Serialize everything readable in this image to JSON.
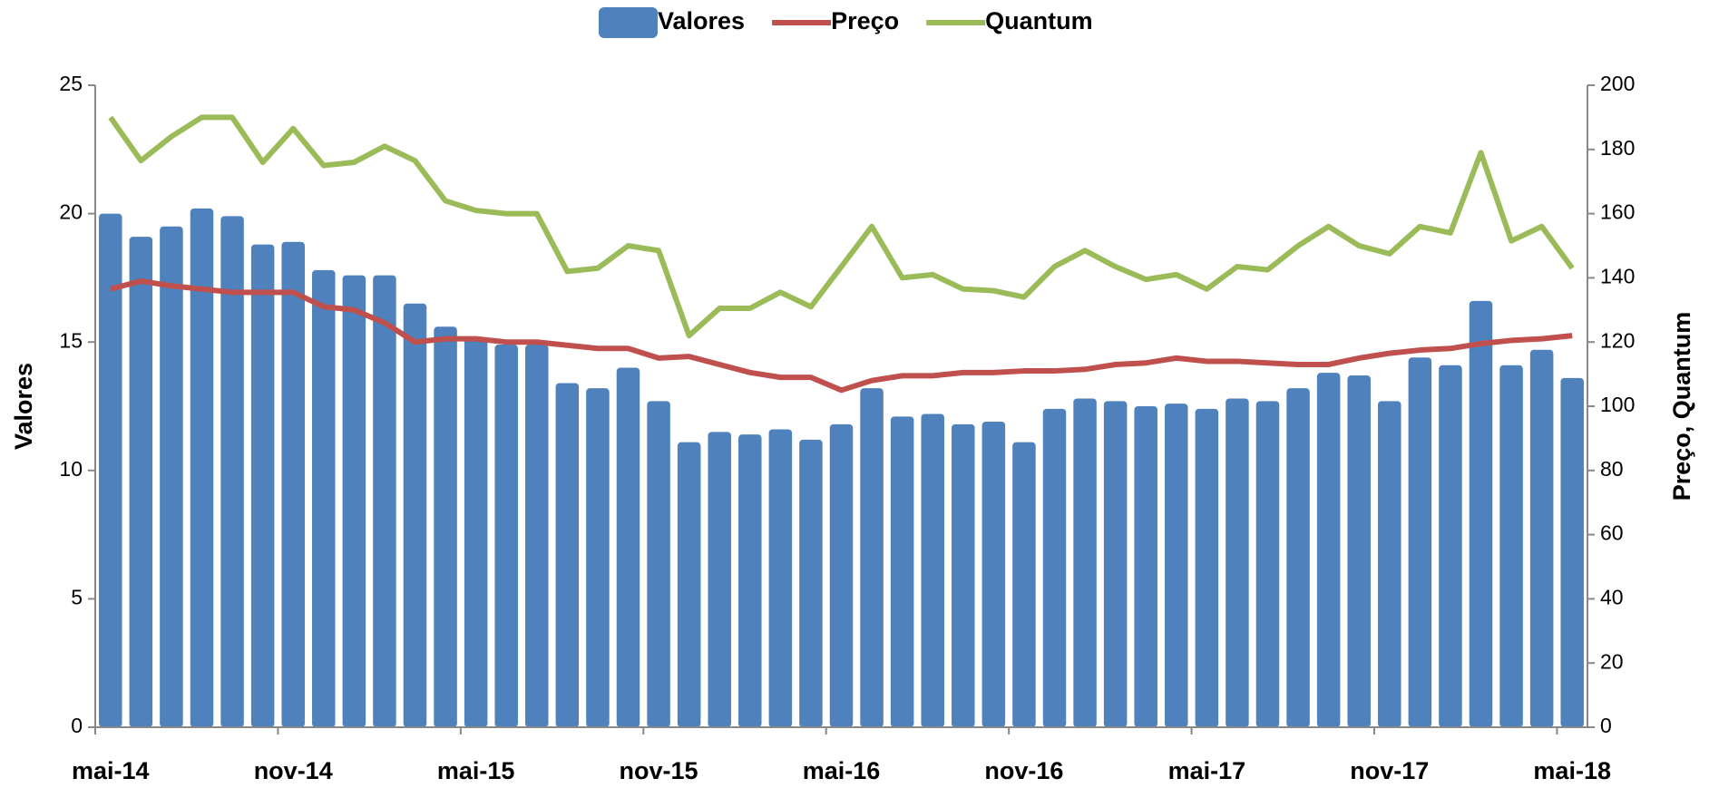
{
  "chart_data": {
    "type": "bar",
    "categories": [
      "mai-14",
      null,
      null,
      null,
      null,
      null,
      "nov-14",
      null,
      null,
      null,
      null,
      null,
      "mai-15",
      null,
      null,
      null,
      null,
      null,
      "nov-15",
      null,
      null,
      null,
      null,
      null,
      "mai-16",
      null,
      null,
      null,
      null,
      null,
      "nov-16",
      null,
      null,
      null,
      null,
      null,
      "mai-17",
      null,
      null,
      null,
      null,
      null,
      "nov-17",
      null,
      null,
      null,
      null,
      null,
      "mai-18"
    ],
    "series": [
      {
        "name": "Valores",
        "type": "bar",
        "color": "#4f81bd",
        "axis": "y",
        "values": [
          20.0,
          19.1,
          19.5,
          20.2,
          19.9,
          18.8,
          18.9,
          17.8,
          17.6,
          17.6,
          16.5,
          15.6,
          15.2,
          14.9,
          14.9,
          13.4,
          13.2,
          14.0,
          12.7,
          11.1,
          11.5,
          11.4,
          11.6,
          11.2,
          11.8,
          13.2,
          12.1,
          12.2,
          11.8,
          11.9,
          11.1,
          12.4,
          12.8,
          12.7,
          12.5,
          12.6,
          12.4,
          12.8,
          12.7,
          13.2,
          13.8,
          13.7,
          12.7,
          14.4,
          14.1,
          16.6,
          14.1,
          14.7,
          13.6
        ]
      },
      {
        "name": "Preço",
        "type": "line",
        "color": "#c0504d",
        "axis": "y2",
        "values": [
          136.5,
          139,
          137.5,
          136.5,
          135.5,
          135.5,
          135.5,
          131,
          130,
          126,
          120,
          121,
          121,
          120,
          120,
          119,
          118,
          118,
          115,
          115.5,
          113,
          110.5,
          109,
          109,
          105,
          108,
          109.5,
          109.5,
          110.5,
          110.5,
          111,
          111,
          111.5,
          113,
          113.5,
          115,
          114,
          114,
          113.5,
          113,
          113,
          115,
          116.5,
          117.5,
          118,
          119.5,
          120.5,
          121,
          122
        ]
      },
      {
        "name": "Quantum",
        "type": "line",
        "color": "#9bbb59",
        "axis": "y2",
        "values": [
          190,
          176.5,
          184,
          190,
          190,
          176,
          186.5,
          175,
          176,
          181,
          176.5,
          164,
          161,
          160,
          160,
          142,
          143,
          150,
          148.5,
          122,
          130.5,
          130.5,
          135.5,
          131,
          143.5,
          156,
          140,
          141,
          136.5,
          136,
          134,
          143.5,
          148.5,
          143.5,
          139.5,
          141,
          136.5,
          143.5,
          142.5,
          150,
          156,
          150,
          147.5,
          156,
          154,
          179,
          151.5,
          156,
          143
        ]
      }
    ],
    "ylabel": "Valores",
    "y2label": "Preço, Quantum",
    "ylim": [
      0,
      25
    ],
    "yticks": [
      0,
      5,
      10,
      15,
      20,
      25
    ],
    "y2lim": [
      0,
      200
    ],
    "y2ticks": [
      0,
      20,
      40,
      60,
      80,
      100,
      120,
      140,
      160,
      180,
      200
    ],
    "legend": "top"
  }
}
